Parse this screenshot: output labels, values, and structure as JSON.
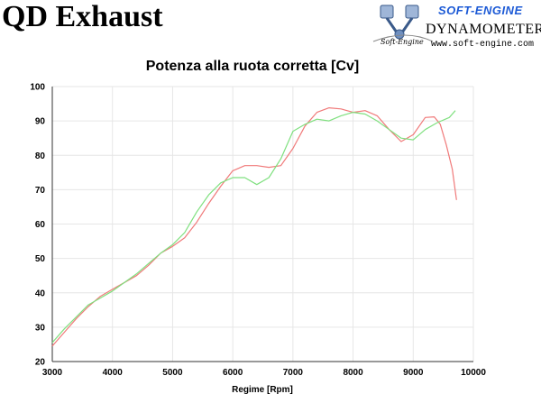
{
  "header": {
    "title": "QD Exhaust",
    "logo_name": "SOFT-ENGINE",
    "logo_tagline": "DYNAMOMETERS",
    "logo_signature": "Soft-Engine",
    "logo_url": "www.soft-engine.com"
  },
  "colors": {
    "series_red": "#f07a7a",
    "series_green": "#7fe07f",
    "gridline": "#e6e6e6",
    "axis": "#333333",
    "logo_blue": "#1e5bd6"
  },
  "chart_data": {
    "type": "line",
    "title": "Potenza alla ruota corretta [Cv]",
    "xlabel": "Regime [Rpm]",
    "ylabel": "",
    "xlim": [
      3000,
      10000
    ],
    "ylim": [
      20,
      100
    ],
    "xticks": [
      3000,
      4000,
      5000,
      6000,
      7000,
      8000,
      9000,
      10000
    ],
    "yticks": [
      20,
      30,
      40,
      50,
      60,
      70,
      80,
      90,
      100
    ],
    "grid": true,
    "legend": "none",
    "series": [
      {
        "color": "#f07a7a",
        "x": [
          3000,
          3200,
          3400,
          3600,
          3800,
          4000,
          4200,
          4400,
          4600,
          4800,
          5000,
          5200,
          5400,
          5600,
          5800,
          6000,
          6200,
          6400,
          6600,
          6800,
          7000,
          7200,
          7400,
          7600,
          7800,
          8000,
          8200,
          8400,
          8600,
          8800,
          9000,
          9200,
          9350,
          9450,
          9550,
          9650,
          9720
        ],
        "y": [
          24.5,
          28.5,
          32.5,
          36,
          39,
          41,
          43,
          45,
          48,
          51.5,
          53.5,
          56,
          60.5,
          66,
          71,
          75.5,
          77,
          77,
          76.5,
          77,
          82,
          88.5,
          92.5,
          93.8,
          93.5,
          92.5,
          93,
          91.5,
          87.5,
          84,
          86,
          91,
          91.2,
          89,
          83,
          76,
          67
        ]
      },
      {
        "color": "#7fe07f",
        "x": [
          3000,
          3200,
          3400,
          3600,
          3800,
          4000,
          4200,
          4400,
          4600,
          4800,
          5000,
          5200,
          5400,
          5600,
          5800,
          6000,
          6200,
          6400,
          6600,
          6800,
          7000,
          7200,
          7400,
          7600,
          7800,
          8000,
          8200,
          8400,
          8600,
          8800,
          9000,
          9200,
          9400,
          9600,
          9700
        ],
        "y": [
          25.5,
          29.5,
          33,
          36.5,
          38.5,
          40.5,
          43,
          45.5,
          48.5,
          51.5,
          54,
          57.5,
          63.5,
          68.5,
          72,
          73.5,
          73.5,
          71.5,
          73.5,
          79,
          87,
          89,
          90.5,
          90,
          91.5,
          92.5,
          92,
          90,
          87.5,
          85,
          84.5,
          87.5,
          89.5,
          91,
          93
        ]
      }
    ]
  }
}
